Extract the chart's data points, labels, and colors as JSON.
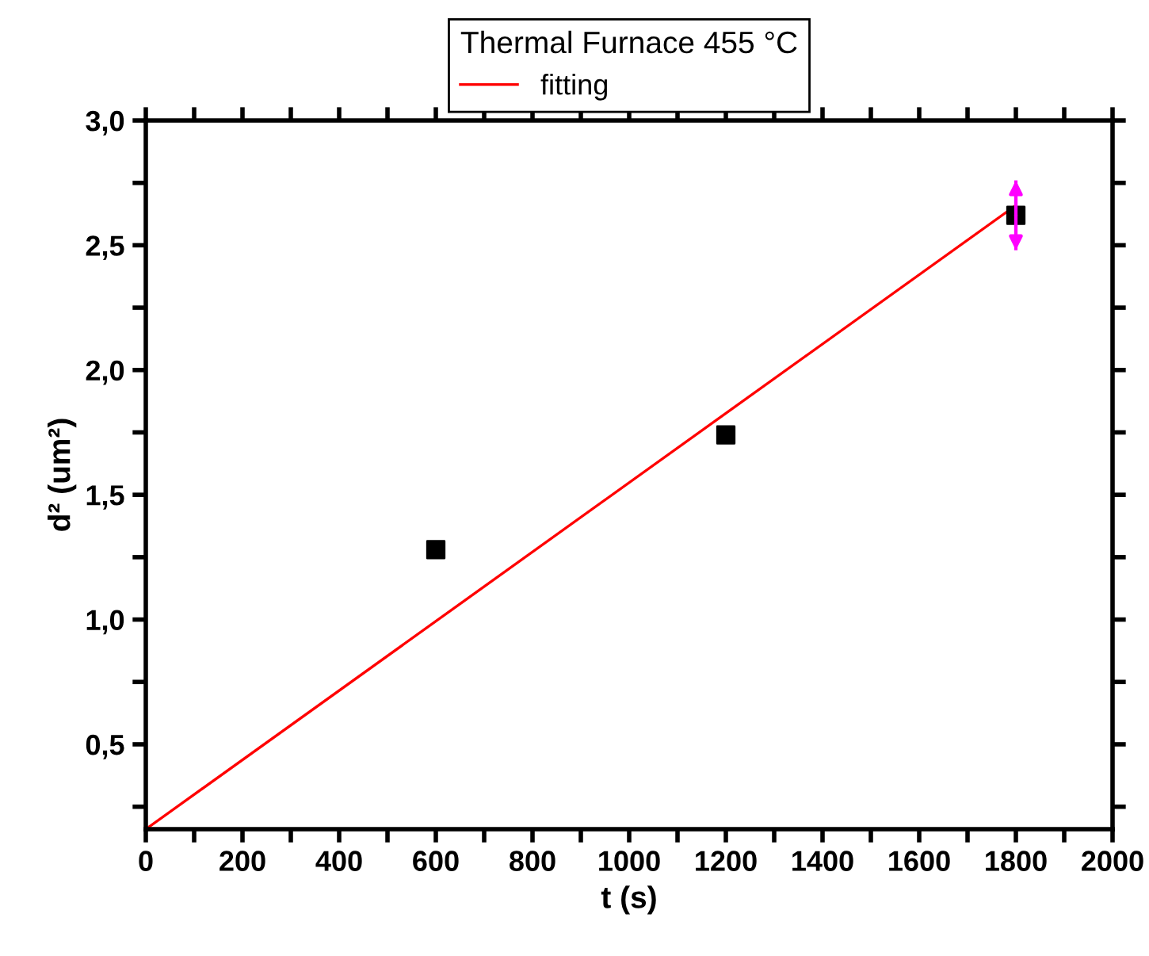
{
  "chart_data": {
    "type": "scatter",
    "xlabel": "t (s)",
    "ylabel": "d² (um²)",
    "legend_title": "Thermal Furnace 455 °C",
    "legend": "top",
    "grid": false,
    "xlim": [
      0,
      2000
    ],
    "ylim": [
      0.16,
      3.0
    ],
    "xticks": [
      0,
      {
        "value": 100,
        "label": null
      },
      200,
      {
        "value": 300,
        "label": null
      },
      400,
      {
        "value": 500,
        "label": null
      },
      600,
      {
        "value": 700,
        "label": null
      },
      800,
      {
        "value": 900,
        "label": null
      },
      1000,
      {
        "value": 1100,
        "label": null
      },
      1200,
      {
        "value": 1300,
        "label": null
      },
      1400,
      {
        "value": 1500,
        "label": null
      },
      1600,
      {
        "value": 1700,
        "label": null
      },
      1800,
      {
        "value": 1900,
        "label": null
      },
      2000
    ],
    "yticks": [
      {
        "value": 0.25,
        "label": null
      },
      {
        "value": 0.5,
        "label": "0,5"
      },
      {
        "value": 0.75,
        "label": null
      },
      {
        "value": 1.0,
        "label": "1,0"
      },
      {
        "value": 1.25,
        "label": null
      },
      {
        "value": 1.5,
        "label": "1,5"
      },
      {
        "value": 1.75,
        "label": null
      },
      {
        "value": 2.0,
        "label": "2,0"
      },
      {
        "value": 2.25,
        "label": null
      },
      {
        "value": 2.5,
        "label": "2,5"
      },
      {
        "value": 2.75,
        "label": null
      },
      {
        "value": 3.0,
        "label": "3,0"
      }
    ],
    "series": [
      {
        "type": "scatter",
        "marker": "square",
        "color": "#000000",
        "x": [
          600,
          1200,
          1800
        ],
        "values": [
          1.28,
          1.74,
          2.62
        ],
        "errors": [
          null,
          null,
          0.14
        ]
      },
      {
        "type": "line",
        "name": "fitting",
        "color": "#ff0000",
        "line_style": "solid",
        "marker": "none",
        "x": [
          0,
          1800
        ],
        "values": [
          0.16,
          2.66
        ]
      }
    ]
  }
}
